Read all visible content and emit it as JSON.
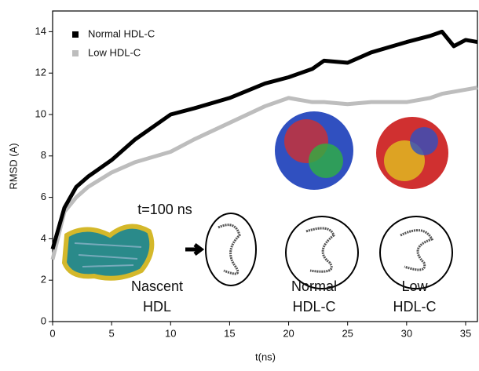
{
  "chart_data": {
    "type": "line",
    "xlabel": "t(ns)",
    "ylabel": "RMSD (A)",
    "x": [
      0,
      1,
      2,
      3,
      5,
      7,
      10,
      12,
      15,
      18,
      20,
      22,
      23,
      25,
      27,
      30,
      32,
      33,
      34,
      35,
      36
    ],
    "series": [
      {
        "name": "Normal HDL-C",
        "color": "#000000",
        "values": [
          3.5,
          5.5,
          6.5,
          7.0,
          7.8,
          8.8,
          10.0,
          10.3,
          10.8,
          11.5,
          11.8,
          12.2,
          12.6,
          12.5,
          13.0,
          13.5,
          13.8,
          14.0,
          13.3,
          13.6,
          13.5
        ]
      },
      {
        "name": "Low HDL-C",
        "color": "#bdbdbd",
        "values": [
          3.0,
          5.3,
          6.0,
          6.5,
          7.2,
          7.7,
          8.2,
          8.8,
          9.6,
          10.4,
          10.8,
          10.6,
          10.6,
          10.5,
          10.6,
          10.6,
          10.8,
          11.0,
          11.1,
          11.2,
          11.3
        ]
      }
    ],
    "xlim": [
      0,
      36
    ],
    "ylim": [
      0,
      15
    ],
    "xticks": [
      0,
      5,
      10,
      15,
      20,
      25,
      30,
      35
    ],
    "yticks": [
      0,
      2,
      4,
      6,
      8,
      10,
      12,
      14
    ],
    "grid": false,
    "legend": "upper left",
    "annotations": [
      {
        "lines": [
          "t=100 ns"
        ]
      },
      {
        "lines": [
          "Nascent",
          "HDL"
        ]
      },
      {
        "lines": [
          "Normal",
          "HDL-C"
        ]
      },
      {
        "lines": [
          "Low",
          "HDL-C"
        ]
      }
    ]
  }
}
